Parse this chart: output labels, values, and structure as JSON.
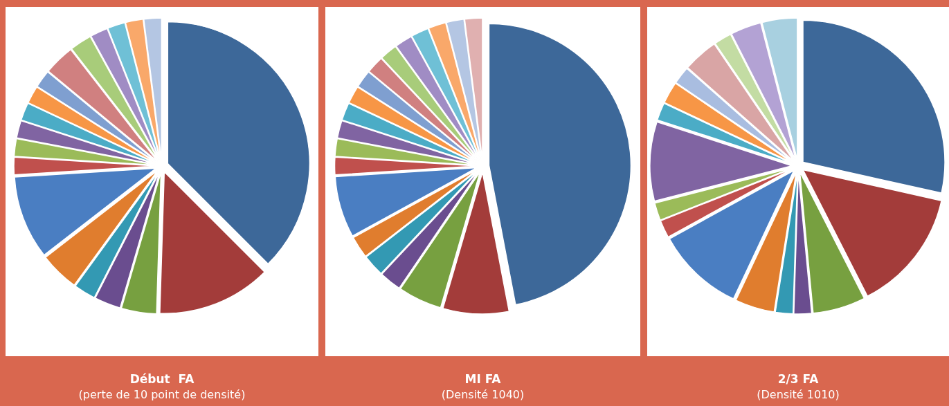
{
  "chart_data": [
    {
      "type": "pie",
      "title": "Début  FA",
      "subtitle": "(perte de 10 point de densité)",
      "categories": [
        null,
        null,
        null,
        null,
        null,
        null,
        null,
        null,
        null,
        null,
        null,
        null,
        null,
        null,
        null,
        null,
        null,
        null,
        null
      ],
      "values": [
        37.5,
        13,
        4,
        3,
        2.5,
        4.5,
        9.5,
        2,
        2,
        2,
        2,
        2,
        2,
        3.5,
        2.5,
        2,
        2,
        2,
        2
      ],
      "colors": [
        "#3d6899",
        "#a33c3a",
        "#77a040",
        "#6a4d8f",
        "#3399b3",
        "#e07d2e",
        "#4a7ec2",
        "#c0504d",
        "#9bbb59",
        "#8064a2",
        "#4bacc6",
        "#f79646",
        "#7f9fd0",
        "#d08080",
        "#a8cc7a",
        "#a08cc4",
        "#6fc0d6",
        "#f9a86a",
        "#b4c6e3"
      ]
    },
    {
      "type": "pie",
      "title": "MI FA",
      "subtitle": "(Densité 1040)",
      "categories": [
        null,
        null,
        null,
        null,
        null,
        null,
        null,
        null,
        null,
        null,
        null,
        null,
        null,
        null,
        null,
        null,
        null,
        null,
        null,
        null
      ],
      "values": [
        47,
        7.5,
        5,
        2.5,
        2.5,
        2.5,
        7,
        2,
        2,
        2,
        2,
        2,
        2,
        2,
        2,
        2,
        2,
        2,
        2,
        2
      ],
      "colors": [
        "#3d6899",
        "#a33c3a",
        "#77a040",
        "#6a4d8f",
        "#3399b3",
        "#e07d2e",
        "#4a7ec2",
        "#c0504d",
        "#9bbb59",
        "#8064a2",
        "#4bacc6",
        "#f79646",
        "#7f9fd0",
        "#d08080",
        "#a8cc7a",
        "#a08cc4",
        "#6fc0d6",
        "#f9a86a",
        "#b4c6e3",
        "#e0b0b0"
      ]
    },
    {
      "type": "pie",
      "title": "2/3 FA",
      "subtitle": "(Densité 1010)",
      "categories": [
        null,
        null,
        null,
        null,
        null,
        null,
        null,
        null,
        null,
        null,
        null,
        null,
        null,
        null,
        null,
        null,
        null
      ],
      "values": [
        28.5,
        14,
        6,
        2,
        2,
        4.5,
        10,
        2,
        2,
        9,
        2,
        2.5,
        2,
        4,
        2,
        3.5,
        4
      ],
      "colors": [
        "#3d6899",
        "#a33c3a",
        "#77a040",
        "#6a4d8f",
        "#3399b3",
        "#e07d2e",
        "#4a7ec2",
        "#c0504d",
        "#9bbb59",
        "#8064a2",
        "#4bacc6",
        "#f79646",
        "#a9bde0",
        "#d9a5a5",
        "#c3dca3",
        "#b3a2d4",
        "#a8d0e0"
      ]
    }
  ]
}
